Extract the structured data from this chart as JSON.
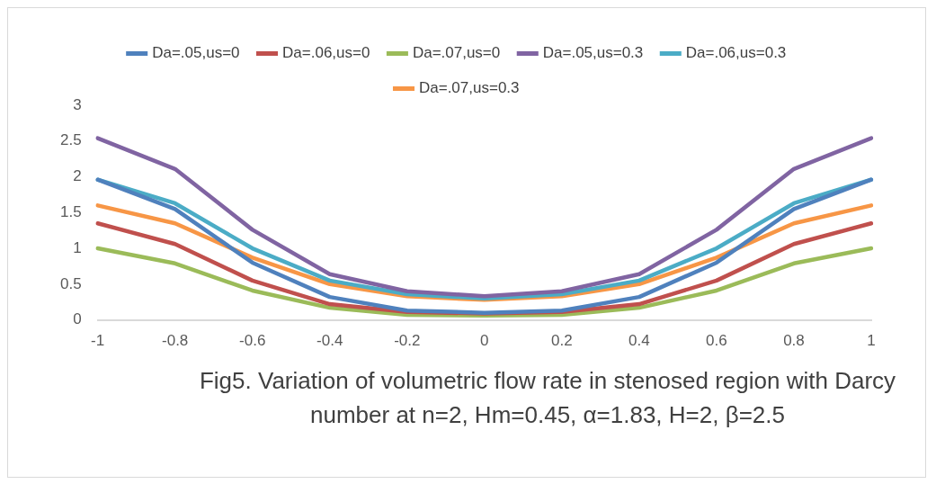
{
  "chart_data": {
    "type": "line",
    "title": "Fig5. Variation of volumetric flow rate in stenosed region with Darcy number at n=2, Hm=0.45, α=1.83, H=2, β=2.5",
    "categories": [
      "-1",
      "-0.8",
      "-0.6",
      "-0.4",
      "-0.2",
      "0",
      "0.2",
      "0.4",
      "0.6",
      "0.8",
      "1"
    ],
    "ylim": [
      0,
      3
    ],
    "yticks": [
      0,
      0.5,
      1,
      1.5,
      2,
      2.5,
      3
    ],
    "grid": false,
    "legend": "top",
    "marker": "none",
    "series": [
      {
        "name": "Da=.05,us=0",
        "color": "#4f81bd",
        "values": [
          1.96,
          1.55,
          0.8,
          0.32,
          0.13,
          0.1,
          0.13,
          0.32,
          0.8,
          1.55,
          1.96
        ]
      },
      {
        "name": "Da=.06,us=0",
        "color": "#c0504d",
        "values": [
          1.35,
          1.06,
          0.55,
          0.22,
          0.11,
          0.09,
          0.11,
          0.22,
          0.55,
          1.06,
          1.35
        ]
      },
      {
        "name": "Da=.07,us=0",
        "color": "#9bbb59",
        "values": [
          1.0,
          0.79,
          0.41,
          0.17,
          0.07,
          0.06,
          0.07,
          0.17,
          0.41,
          0.79,
          1.0
        ]
      },
      {
        "name": "Da=.05,us=0.3",
        "color": "#8064a2",
        "values": [
          2.54,
          2.11,
          1.26,
          0.64,
          0.4,
          0.33,
          0.4,
          0.64,
          1.26,
          2.11,
          2.54
        ]
      },
      {
        "name": "Da=.06,us=0.3",
        "color": "#4bacc6",
        "values": [
          1.96,
          1.63,
          1.0,
          0.55,
          0.36,
          0.3,
          0.36,
          0.55,
          1.0,
          1.63,
          1.96
        ]
      },
      {
        "name": "Da=.07,us=0.3",
        "color": "#f79646",
        "values": [
          1.6,
          1.35,
          0.87,
          0.5,
          0.33,
          0.28,
          0.33,
          0.5,
          0.87,
          1.35,
          1.6
        ]
      }
    ]
  }
}
